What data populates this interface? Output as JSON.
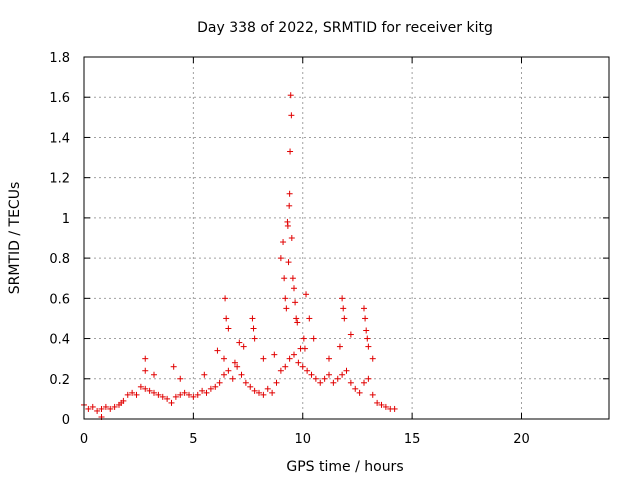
{
  "chart_data": {
    "type": "scatter",
    "title": "Day 338 of 2022, SRMTID for receiver kitg",
    "xlabel": "GPS time / hours",
    "ylabel": "SRMTID / TECUs",
    "xlim": [
      0,
      24
    ],
    "ylim": [
      0,
      1.8
    ],
    "xticks": [
      0,
      5,
      10,
      15,
      20
    ],
    "yticks": [
      0,
      0.2,
      0.4,
      0.6,
      0.8,
      1,
      1.2,
      1.4,
      1.6,
      1.8
    ],
    "xtick_labels": [
      "0",
      "5",
      "10",
      "15",
      "20"
    ],
    "ytick_labels": [
      "0",
      "0.2",
      "0.4",
      "0.6",
      "0.8",
      "1",
      "1.2",
      "1.4",
      "1.6",
      "1.8"
    ],
    "grid": true,
    "marker": "+",
    "color": "#e00000",
    "series": [
      {
        "name": "SRMTID",
        "x": [
          0.0,
          0.2,
          0.4,
          0.6,
          0.8,
          1.0,
          1.2,
          1.4,
          1.6,
          1.8,
          2.0,
          2.2,
          2.4,
          2.6,
          2.8,
          3.0,
          3.2,
          3.4,
          3.6,
          3.8,
          4.0,
          4.2,
          4.4,
          4.6,
          4.8,
          5.0,
          5.2,
          5.4,
          5.6,
          5.8,
          6.0,
          6.2,
          6.4,
          6.6,
          6.8,
          7.0,
          7.2,
          7.4,
          7.6,
          7.8,
          8.0,
          8.2,
          8.4,
          8.6,
          8.8,
          9.0,
          9.2,
          9.4,
          9.6,
          9.8,
          10.0,
          10.2,
          10.4,
          10.6,
          10.8,
          11.0,
          11.2,
          11.4,
          11.6,
          11.8,
          12.0,
          12.2,
          12.4,
          12.6,
          12.8,
          13.0,
          13.2,
          13.4,
          13.6,
          13.8,
          14.0,
          14.2,
          0.8,
          1.7,
          2.8,
          2.8,
          3.2,
          4.1,
          4.4,
          5.5,
          6.1,
          6.4,
          6.45,
          6.5,
          6.6,
          6.9,
          7.1,
          7.3,
          7.7,
          7.75,
          7.8,
          8.2,
          8.7,
          9.0,
          9.1,
          9.15,
          9.2,
          9.25,
          9.3,
          9.32,
          9.35,
          9.38,
          9.4,
          9.42,
          9.45,
          9.48,
          9.5,
          9.55,
          9.6,
          9.65,
          9.7,
          9.75,
          9.9,
          10.05,
          10.1,
          10.15,
          10.3,
          10.5,
          11.2,
          11.7,
          11.8,
          11.85,
          11.9,
          12.2,
          12.8,
          12.85,
          12.9,
          12.95,
          13.0,
          13.2
        ],
        "y": [
          0.07,
          0.05,
          0.06,
          0.04,
          0.05,
          0.06,
          0.05,
          0.06,
          0.07,
          0.09,
          0.12,
          0.13,
          0.12,
          0.16,
          0.15,
          0.14,
          0.13,
          0.12,
          0.11,
          0.1,
          0.08,
          0.11,
          0.12,
          0.13,
          0.12,
          0.11,
          0.12,
          0.14,
          0.13,
          0.15,
          0.16,
          0.18,
          0.22,
          0.24,
          0.2,
          0.26,
          0.22,
          0.18,
          0.16,
          0.14,
          0.13,
          0.12,
          0.15,
          0.13,
          0.18,
          0.24,
          0.26,
          0.3,
          0.32,
          0.28,
          0.26,
          0.24,
          0.22,
          0.2,
          0.18,
          0.2,
          0.22,
          0.18,
          0.2,
          0.22,
          0.24,
          0.18,
          0.15,
          0.13,
          0.18,
          0.2,
          0.12,
          0.08,
          0.07,
          0.06,
          0.05,
          0.05,
          0.01,
          0.08,
          0.3,
          0.24,
          0.22,
          0.26,
          0.2,
          0.22,
          0.34,
          0.3,
          0.6,
          0.5,
          0.45,
          0.28,
          0.38,
          0.36,
          0.5,
          0.45,
          0.4,
          0.3,
          0.32,
          0.8,
          0.88,
          0.7,
          0.6,
          0.55,
          0.98,
          0.96,
          0.78,
          1.06,
          1.12,
          1.33,
          1.61,
          1.51,
          0.9,
          0.7,
          0.65,
          0.58,
          0.5,
          0.48,
          0.35,
          0.4,
          0.35,
          0.62,
          0.5,
          0.4,
          0.3,
          0.36,
          0.6,
          0.55,
          0.5,
          0.42,
          0.55,
          0.5,
          0.44,
          0.4,
          0.36,
          0.3
        ]
      }
    ]
  }
}
